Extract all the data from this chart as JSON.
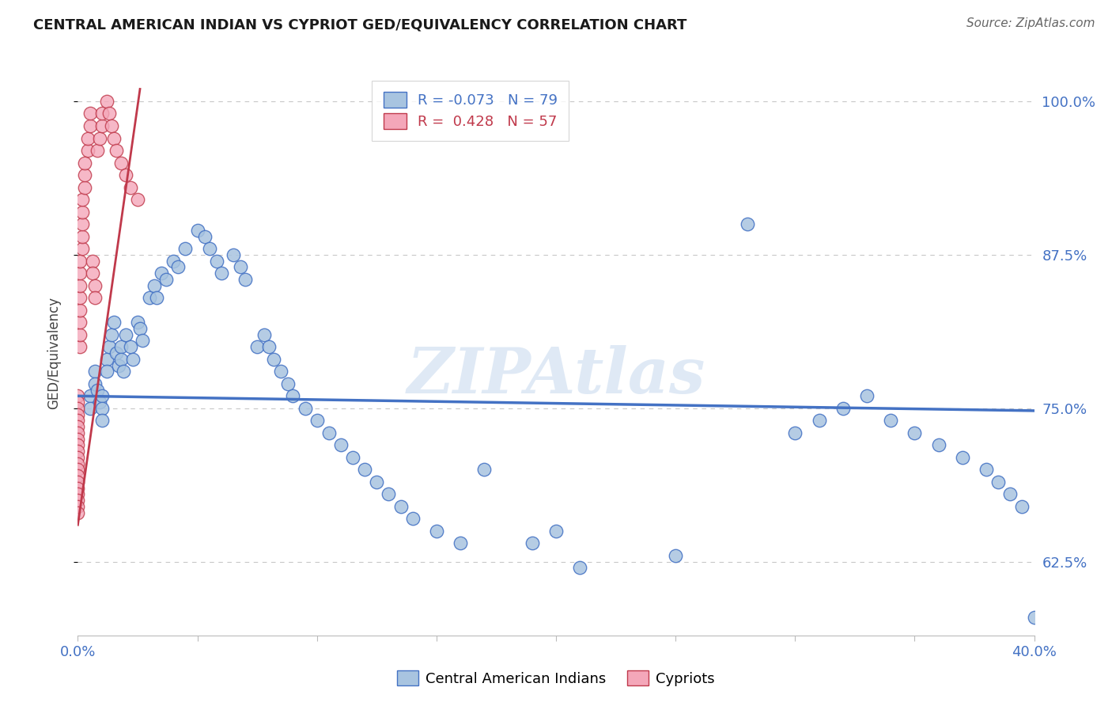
{
  "title": "CENTRAL AMERICAN INDIAN VS CYPRIOT GED/EQUIVALENCY CORRELATION CHART",
  "source": "Source: ZipAtlas.com",
  "ylabel": "GED/Equivalency",
  "watermark": "ZIPAtlas",
  "r_blue": -0.073,
  "n_blue": 79,
  "r_pink": 0.428,
  "n_pink": 57,
  "ytick_vals": [
    62.5,
    75.0,
    87.5,
    100.0
  ],
  "xlim": [
    0.0,
    0.4
  ],
  "ylim": [
    0.565,
    1.025
  ],
  "blue_color": "#a8c4e0",
  "blue_edge_color": "#4472c4",
  "pink_color": "#f4a7b9",
  "pink_edge_color": "#c0394b",
  "blue_line_color": "#4472c4",
  "pink_line_color": "#c0394b",
  "grid_color": "#c8c8c8",
  "title_color": "#1a1a1a",
  "axis_color": "#4472c4",
  "blue_scatter_x": [
    0.005,
    0.005,
    0.007,
    0.007,
    0.008,
    0.009,
    0.01,
    0.01,
    0.01,
    0.012,
    0.012,
    0.013,
    0.014,
    0.015,
    0.016,
    0.017,
    0.018,
    0.018,
    0.019,
    0.02,
    0.022,
    0.023,
    0.025,
    0.026,
    0.027,
    0.03,
    0.032,
    0.033,
    0.035,
    0.037,
    0.04,
    0.042,
    0.045,
    0.05,
    0.053,
    0.055,
    0.058,
    0.06,
    0.065,
    0.068,
    0.07,
    0.075,
    0.078,
    0.08,
    0.082,
    0.085,
    0.088,
    0.09,
    0.095,
    0.1,
    0.105,
    0.11,
    0.115,
    0.12,
    0.125,
    0.13,
    0.135,
    0.14,
    0.15,
    0.16,
    0.17,
    0.19,
    0.2,
    0.21,
    0.25,
    0.28,
    0.3,
    0.31,
    0.32,
    0.33,
    0.34,
    0.35,
    0.36,
    0.37,
    0.38,
    0.385,
    0.39,
    0.395,
    0.4
  ],
  "blue_scatter_y": [
    0.76,
    0.75,
    0.78,
    0.77,
    0.765,
    0.755,
    0.76,
    0.75,
    0.74,
    0.79,
    0.78,
    0.8,
    0.81,
    0.82,
    0.795,
    0.785,
    0.8,
    0.79,
    0.78,
    0.81,
    0.8,
    0.79,
    0.82,
    0.815,
    0.805,
    0.84,
    0.85,
    0.84,
    0.86,
    0.855,
    0.87,
    0.865,
    0.88,
    0.895,
    0.89,
    0.88,
    0.87,
    0.86,
    0.875,
    0.865,
    0.855,
    0.8,
    0.81,
    0.8,
    0.79,
    0.78,
    0.77,
    0.76,
    0.75,
    0.74,
    0.73,
    0.72,
    0.71,
    0.7,
    0.69,
    0.68,
    0.67,
    0.66,
    0.65,
    0.64,
    0.7,
    0.64,
    0.65,
    0.62,
    0.63,
    0.9,
    0.73,
    0.74,
    0.75,
    0.76,
    0.74,
    0.73,
    0.72,
    0.71,
    0.7,
    0.69,
    0.68,
    0.67,
    0.58
  ],
  "pink_scatter_x": [
    0.0,
    0.0,
    0.0,
    0.0,
    0.0,
    0.0,
    0.0,
    0.0,
    0.0,
    0.0,
    0.0,
    0.0,
    0.0,
    0.0,
    0.0,
    0.0,
    0.0,
    0.0,
    0.0,
    0.0,
    0.001,
    0.001,
    0.001,
    0.001,
    0.001,
    0.001,
    0.001,
    0.001,
    0.002,
    0.002,
    0.002,
    0.002,
    0.002,
    0.003,
    0.003,
    0.003,
    0.004,
    0.004,
    0.005,
    0.005,
    0.006,
    0.006,
    0.007,
    0.007,
    0.008,
    0.009,
    0.01,
    0.01,
    0.012,
    0.013,
    0.014,
    0.015,
    0.016,
    0.018,
    0.02,
    0.022,
    0.025
  ],
  "pink_scatter_y": [
    0.76,
    0.755,
    0.75,
    0.745,
    0.74,
    0.735,
    0.73,
    0.725,
    0.72,
    0.715,
    0.71,
    0.705,
    0.7,
    0.695,
    0.69,
    0.685,
    0.68,
    0.675,
    0.67,
    0.665,
    0.8,
    0.81,
    0.82,
    0.83,
    0.84,
    0.85,
    0.86,
    0.87,
    0.88,
    0.89,
    0.9,
    0.91,
    0.92,
    0.93,
    0.94,
    0.95,
    0.96,
    0.97,
    0.98,
    0.99,
    0.87,
    0.86,
    0.85,
    0.84,
    0.96,
    0.97,
    0.98,
    0.99,
    1.0,
    0.99,
    0.98,
    0.97,
    0.96,
    0.95,
    0.94,
    0.93,
    0.92
  ],
  "blue_trend_x": [
    0.0,
    0.4
  ],
  "blue_trend_y": [
    0.76,
    0.748
  ],
  "pink_trend_x": [
    0.0,
    0.026
  ],
  "pink_trend_y": [
    0.655,
    1.01
  ]
}
